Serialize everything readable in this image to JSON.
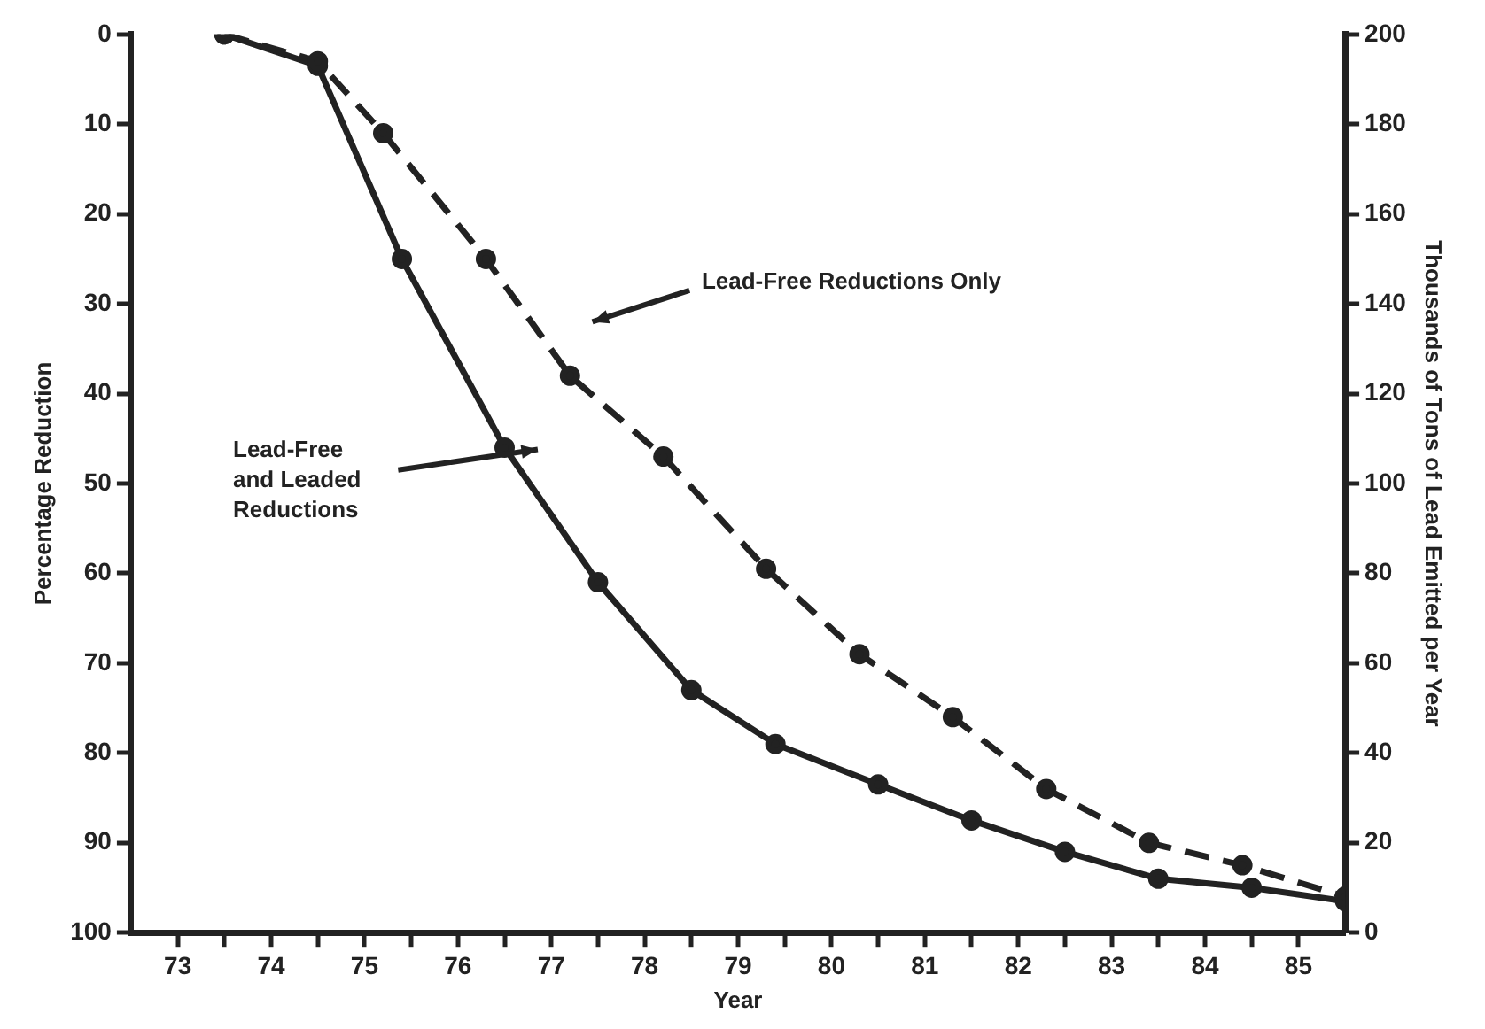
{
  "chart_data": {
    "type": "line",
    "xlabel": "Year",
    "ylabel": "Percentage Reduction",
    "y2label": "Thousands of Tons of Lead Emitted per Year",
    "xlim": [
      73,
      86
    ],
    "xticks": [
      {
        "value": 73.5,
        "label": "73"
      },
      {
        "value": 74,
        "label": null
      },
      {
        "value": 74.5,
        "label": "74"
      },
      {
        "value": 75,
        "label": null
      },
      {
        "value": 75.5,
        "label": "75"
      },
      {
        "value": 76,
        "label": null
      },
      {
        "value": 76.5,
        "label": "76"
      },
      {
        "value": 77,
        "label": null
      },
      {
        "value": 77.5,
        "label": "77"
      },
      {
        "value": 78,
        "label": null
      },
      {
        "value": 78.5,
        "label": "78"
      },
      {
        "value": 79,
        "label": null
      },
      {
        "value": 79.5,
        "label": "79"
      },
      {
        "value": 80,
        "label": null
      },
      {
        "value": 80.5,
        "label": "80"
      },
      {
        "value": 81,
        "label": null
      },
      {
        "value": 81.5,
        "label": "81"
      },
      {
        "value": 82,
        "label": null
      },
      {
        "value": 82.5,
        "label": "82"
      },
      {
        "value": 83,
        "label": null
      },
      {
        "value": 83.5,
        "label": "83"
      },
      {
        "value": 84,
        "label": null
      },
      {
        "value": 84.5,
        "label": "84"
      },
      {
        "value": 85,
        "label": null
      },
      {
        "value": 85.5,
        "label": "85"
      }
    ],
    "ylim": [
      100,
      0
    ],
    "yticks": [
      0,
      10,
      20,
      30,
      40,
      50,
      60,
      70,
      80,
      90,
      100
    ],
    "y2lim": [
      0,
      200
    ],
    "y2ticks": [
      0,
      20,
      40,
      60,
      80,
      100,
      120,
      140,
      160,
      180,
      200
    ],
    "marker": "circle",
    "grid": false,
    "legend": false,
    "series": [
      {
        "color": "#222222",
        "line_style": "dashed",
        "x": [
          74,
          75,
          75.7,
          76.8,
          77.7,
          78.7,
          79.8,
          80.8,
          81.8,
          82.8,
          83.9,
          84.9,
          86
        ],
        "values": [
          0,
          3,
          11,
          25,
          38,
          47,
          59.5,
          69,
          76,
          84,
          90,
          92.5,
          96
        ]
      },
      {
        "color": "#222222",
        "line_style": "solid",
        "x": [
          74,
          75,
          75.9,
          77,
          78,
          79,
          79.9,
          81,
          82,
          83,
          84,
          85,
          86
        ],
        "values": [
          0,
          3.5,
          25,
          46,
          61,
          73,
          79,
          83.5,
          87.5,
          91,
          94,
          95,
          96.5
        ]
      }
    ],
    "annotations": [
      "Lead-Free Reductions Only",
      "Lead-Free\nand Leaded\nReductions"
    ]
  }
}
